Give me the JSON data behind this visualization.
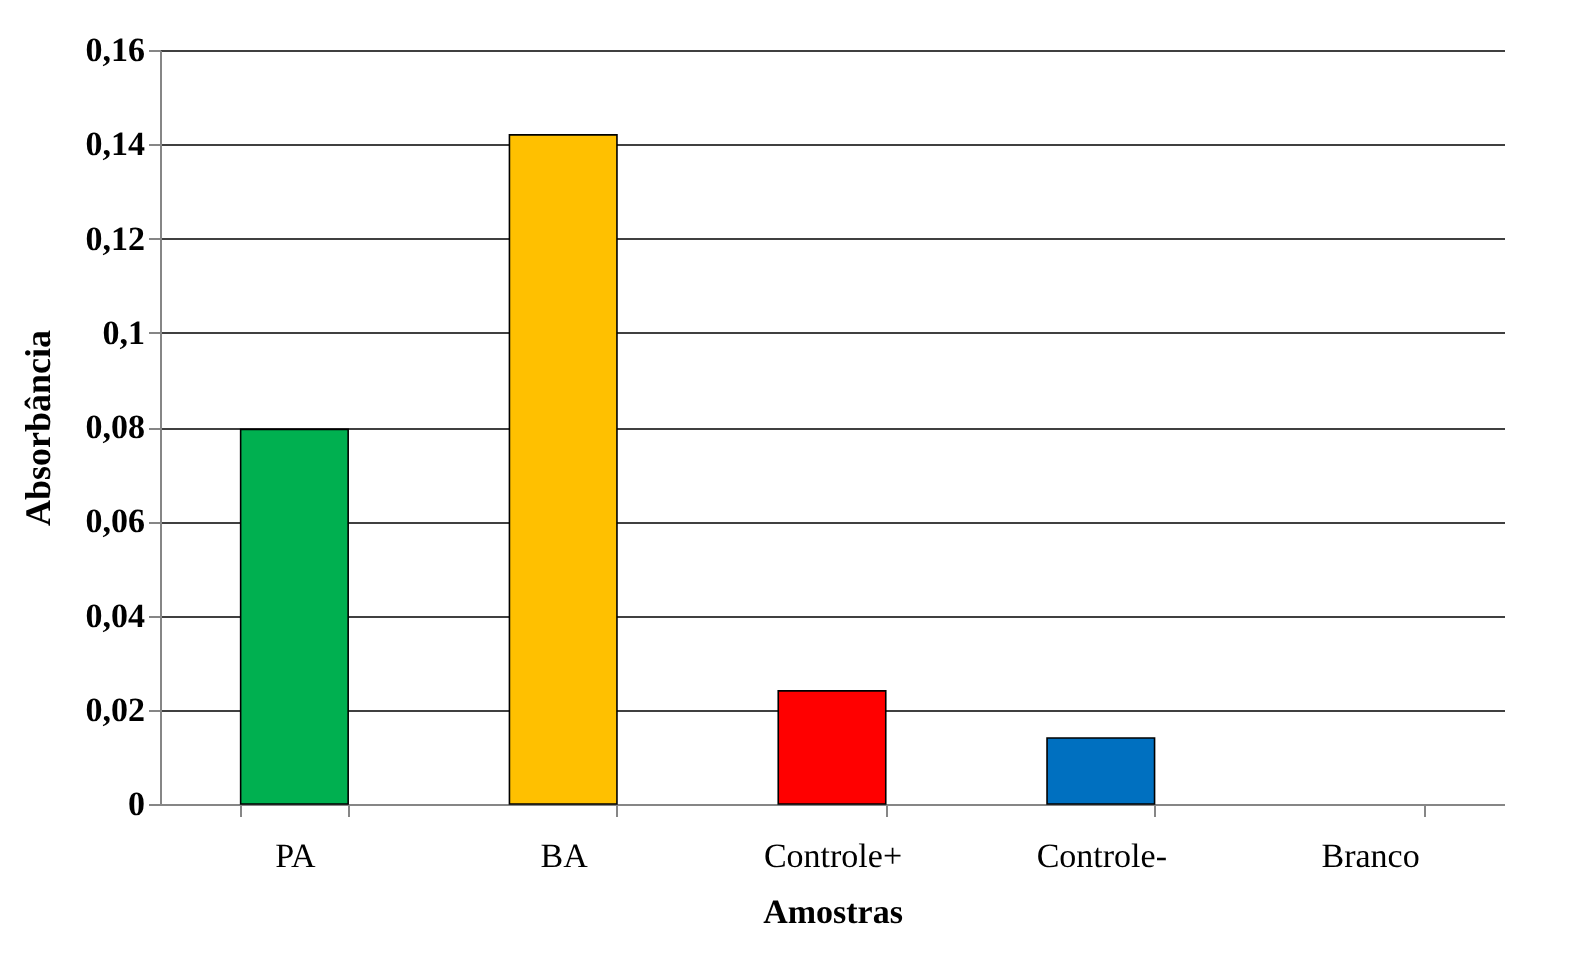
{
  "chart_data": {
    "type": "bar",
    "xlabel": "Amostras",
    "ylabel": "Absorbância",
    "categories": [
      "PA",
      "BA",
      "Controle+",
      "Controle-",
      "Branco"
    ],
    "values": [
      0.0795,
      0.142,
      0.024,
      0.014,
      0
    ],
    "colors": [
      "#00b050",
      "#ffc000",
      "#ff0000",
      "#0070c0",
      "#7f7f7f"
    ],
    "ylim": [
      0,
      0.16
    ],
    "yticks": [
      {
        "value": 0,
        "label": "0"
      },
      {
        "value": 0.02,
        "label": "0,02"
      },
      {
        "value": 0.04,
        "label": "0,04"
      },
      {
        "value": 0.06,
        "label": "0,06"
      },
      {
        "value": 0.08,
        "label": "0,08"
      },
      {
        "value": 0.1,
        "label": "0,1"
      },
      {
        "value": 0.12,
        "label": "0,12"
      },
      {
        "value": 0.14,
        "label": "0,14"
      },
      {
        "value": 0.16,
        "label": "0,16"
      }
    ],
    "grid": "y",
    "legend": false
  }
}
